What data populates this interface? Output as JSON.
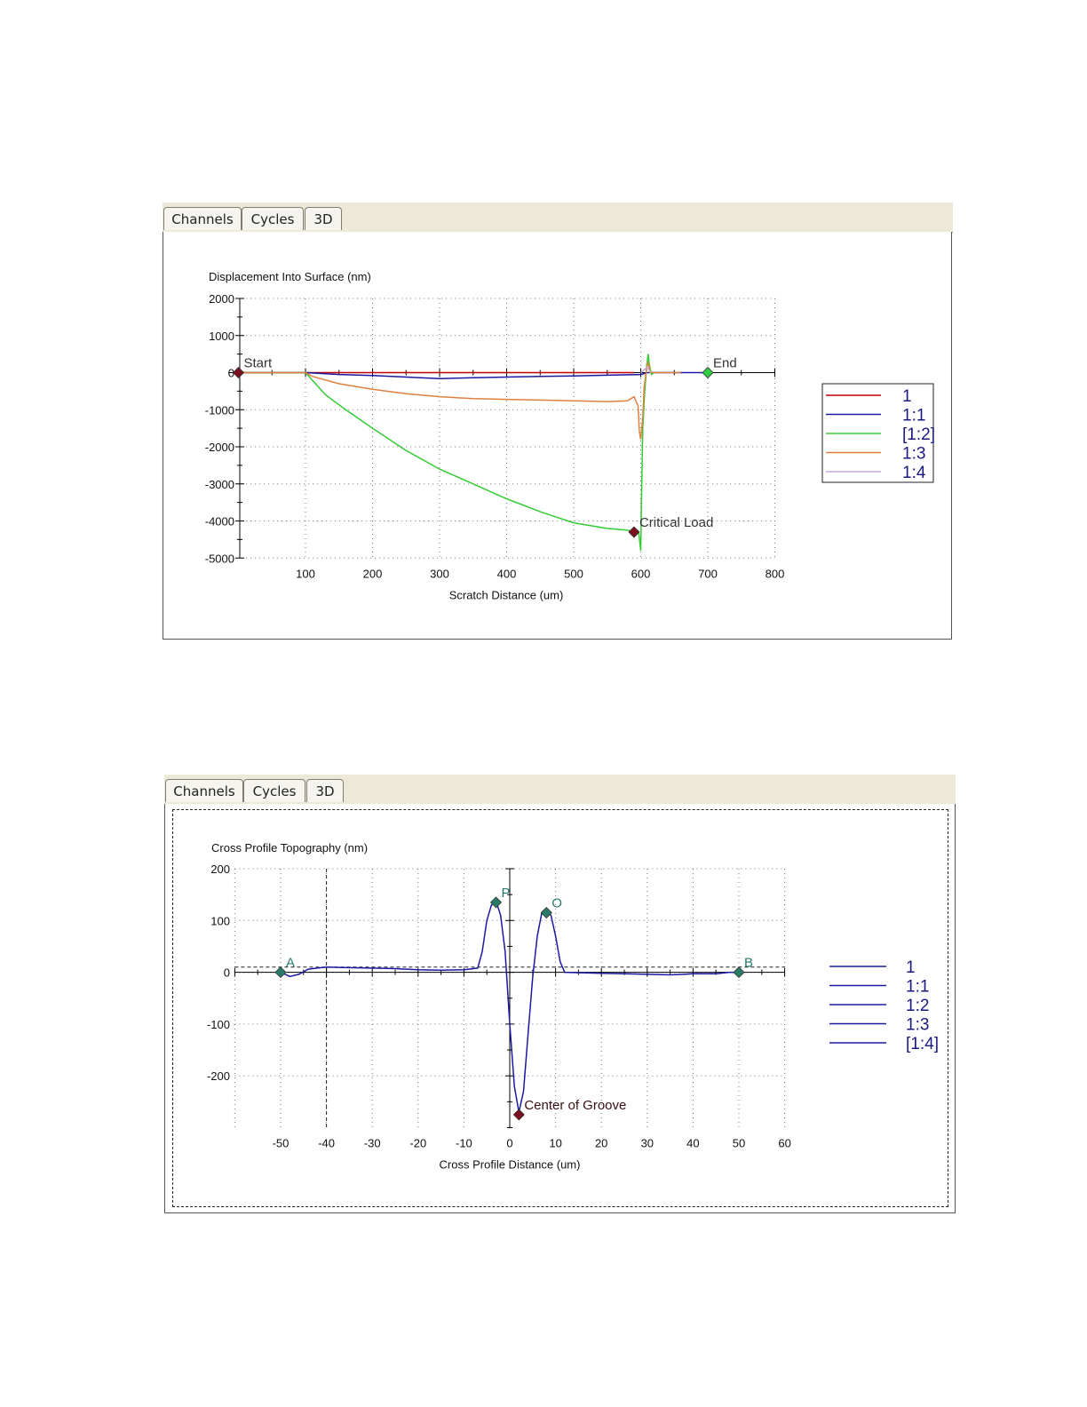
{
  "panels": [
    {
      "tabs": [
        {
          "label": "Channels",
          "active": true
        },
        {
          "label": "Cycles",
          "active": false
        },
        {
          "label": "3D",
          "active": false
        }
      ]
    },
    {
      "tabs": [
        {
          "label": "Channels",
          "active": false
        },
        {
          "label": "Cycles",
          "active": true
        },
        {
          "label": "3D",
          "active": false
        }
      ]
    }
  ],
  "chart_data": [
    {
      "type": "line",
      "title": "Displacement Into Surface (nm)",
      "xlabel": "Scratch Distance  (um)",
      "ylabel": "",
      "xlim": [
        -15,
        800
      ],
      "ylim": [
        -5000,
        2000
      ],
      "x_ticks": [
        100,
        200,
        300,
        400,
        500,
        600,
        700,
        800
      ],
      "y_ticks": [
        2000,
        1000,
        0,
        -1000,
        -2000,
        -3000,
        -4000,
        -5000
      ],
      "grid": true,
      "legend_position": "right",
      "series": [
        {
          "name": "1",
          "color": "#c00000",
          "points": [
            [
              0,
              0
            ],
            [
              590,
              0
            ]
          ]
        },
        {
          "name": "1:1",
          "color": "#1a1aa0",
          "points": [
            [
              0,
              0
            ],
            [
              50,
              0
            ],
            [
              100,
              0
            ],
            [
              150,
              -50
            ],
            [
              200,
              -80
            ],
            [
              250,
              -120
            ],
            [
              300,
              -160
            ],
            [
              350,
              -140
            ],
            [
              400,
              -120
            ],
            [
              450,
              -100
            ],
            [
              500,
              -90
            ],
            [
              550,
              -70
            ],
            [
              600,
              -50
            ],
            [
              610,
              0
            ],
            [
              700,
              0
            ]
          ]
        },
        {
          "name": "[1:2]",
          "color": "#33cc33",
          "points": [
            [
              0,
              0
            ],
            [
              50,
              0
            ],
            [
              100,
              0
            ],
            [
              110,
              -200
            ],
            [
              130,
              -600
            ],
            [
              160,
              -1000
            ],
            [
              200,
              -1500
            ],
            [
              250,
              -2100
            ],
            [
              300,
              -2600
            ],
            [
              350,
              -3000
            ],
            [
              400,
              -3400
            ],
            [
              450,
              -3750
            ],
            [
              500,
              -4050
            ],
            [
              550,
              -4200
            ],
            [
              580,
              -4250
            ],
            [
              597,
              -4300
            ],
            [
              600,
              -4800
            ],
            [
              601,
              -3500
            ],
            [
              603,
              -1500
            ],
            [
              606,
              -500
            ],
            [
              609,
              200
            ],
            [
              611,
              500
            ],
            [
              613,
              200
            ],
            [
              616,
              -50
            ],
            [
              620,
              0
            ]
          ]
        },
        {
          "name": "1:3",
          "color": "#e08040",
          "points": [
            [
              0,
              0
            ],
            [
              50,
              0
            ],
            [
              100,
              0
            ],
            [
              110,
              -100
            ],
            [
              150,
              -300
            ],
            [
              200,
              -450
            ],
            [
              250,
              -570
            ],
            [
              300,
              -650
            ],
            [
              350,
              -700
            ],
            [
              400,
              -720
            ],
            [
              450,
              -740
            ],
            [
              500,
              -760
            ],
            [
              550,
              -780
            ],
            [
              580,
              -760
            ],
            [
              590,
              -650
            ],
            [
              596,
              -900
            ],
            [
              598,
              -1600
            ],
            [
              600,
              -1800
            ],
            [
              603,
              -1200
            ],
            [
              605,
              -400
            ],
            [
              608,
              0
            ],
            [
              611,
              300
            ],
            [
              614,
              0
            ],
            [
              620,
              0
            ],
            [
              660,
              0
            ]
          ]
        },
        {
          "name": "1:4",
          "color": "#c8a8d8",
          "points": [
            [
              600,
              0
            ],
            [
              610,
              150
            ],
            [
              615,
              0
            ]
          ]
        }
      ],
      "markers": [
        {
          "label": "Start",
          "x": 0,
          "y": 0,
          "color": "#7a1020"
        },
        {
          "label": "End",
          "x": 700,
          "y": 0,
          "color": "#2ecc40"
        },
        {
          "label": "Critical Load",
          "x": 590,
          "y": -4300,
          "color": "#7a1020"
        }
      ]
    },
    {
      "type": "line",
      "title": "Cross Profile Topography (nm)",
      "xlabel": "Cross Profile Distance (um)",
      "ylabel": "",
      "xlim": [
        -60,
        60
      ],
      "ylim": [
        -300,
        200
      ],
      "x_ticks": [
        -50,
        -40,
        -30,
        -20,
        -10,
        0,
        10,
        20,
        30,
        40,
        50,
        60
      ],
      "y_ticks": [
        200,
        100,
        0,
        -100,
        -200
      ],
      "grid": true,
      "legend_position": "right",
      "reference_lines": {
        "horizontal_y": 10,
        "vertical_x": -40
      },
      "series": [
        {
          "name": "1",
          "color": "#1a1aa0",
          "points": []
        },
        {
          "name": "1:1",
          "color": "#1a1aa0",
          "points": []
        },
        {
          "name": "1:2",
          "color": "#1a1aa0",
          "points": []
        },
        {
          "name": "1:3",
          "color": "#1a1aa0",
          "points": []
        },
        {
          "name": "[1:4]",
          "color": "#1a1aa0",
          "points": [
            [
              -50,
              0
            ],
            [
              -48,
              -8
            ],
            [
              -46,
              -4
            ],
            [
              -44,
              6
            ],
            [
              -42,
              8
            ],
            [
              -40,
              10
            ],
            [
              -35,
              9
            ],
            [
              -30,
              8
            ],
            [
              -25,
              7
            ],
            [
              -20,
              5
            ],
            [
              -15,
              4
            ],
            [
              -10,
              5
            ],
            [
              -7,
              8
            ],
            [
              -6,
              40
            ],
            [
              -5,
              100
            ],
            [
              -4,
              130
            ],
            [
              -3,
              138
            ],
            [
              -2,
              110
            ],
            [
              -1,
              40
            ],
            [
              0,
              -100
            ],
            [
              1,
              -220
            ],
            [
              2,
              -270
            ],
            [
              3,
              -230
            ],
            [
              4,
              -120
            ],
            [
              5,
              -10
            ],
            [
              6,
              70
            ],
            [
              7,
              115
            ],
            [
              8,
              122
            ],
            [
              9,
              110
            ],
            [
              10,
              70
            ],
            [
              11,
              20
            ],
            [
              12,
              0
            ],
            [
              20,
              -2
            ],
            [
              25,
              -3
            ],
            [
              30,
              -4
            ],
            [
              35,
              -5
            ],
            [
              38,
              -4
            ],
            [
              40,
              -3
            ],
            [
              45,
              -3
            ],
            [
              48,
              0
            ],
            [
              50,
              0
            ]
          ]
        }
      ],
      "markers": [
        {
          "label": "A",
          "x": -50,
          "y": 0,
          "color": "#2a7a6a"
        },
        {
          "label": "P",
          "x": -3,
          "y": 135,
          "color": "#2a7a6a"
        },
        {
          "label": "O",
          "x": 8,
          "y": 115,
          "color": "#2a7a6a"
        },
        {
          "label": "B",
          "x": 50,
          "y": 0,
          "color": "#2a7a6a"
        },
        {
          "label": "Center of Groove",
          "x": 2,
          "y": -275,
          "color": "#7a1020"
        }
      ]
    }
  ]
}
